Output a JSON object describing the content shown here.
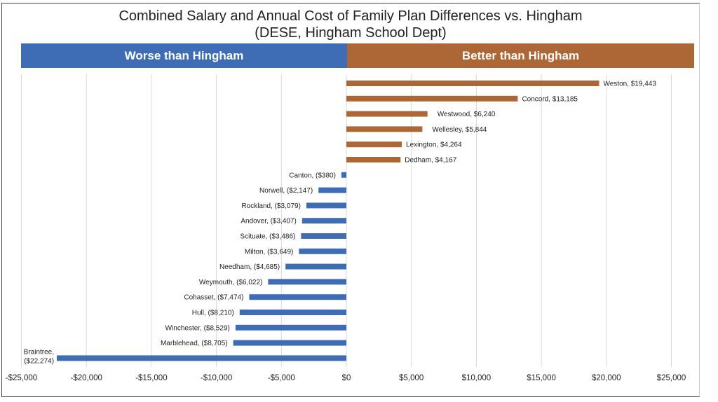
{
  "chart_data": {
    "type": "bar",
    "orientation": "horizontal",
    "title": "Combined Salary and Annual Cost of Family Plan Differences vs. Hingham",
    "subtitle": "(DESE, Hingham School Dept)",
    "regions": {
      "negative": {
        "label": "Worse than Hingham",
        "color": "#3e6db5"
      },
      "positive": {
        "label": "Better than Hingham",
        "color": "#ad6636"
      }
    },
    "xlabel": "",
    "ylabel": "",
    "xlim": [
      -25000,
      27000
    ],
    "xticks": [
      -25000,
      -20000,
      -15000,
      -10000,
      -5000,
      0,
      5000,
      10000,
      15000,
      20000,
      25000
    ],
    "xtick_labels": [
      "-$25,000",
      "-$20,000",
      "-$15,000",
      "-$10,000",
      "-$5,000",
      "$0",
      "$5,000",
      "$10,000",
      "$15,000",
      "$20,000",
      "$25,000"
    ],
    "grid": "vertical",
    "legend": "none",
    "categories": [
      "Weston",
      "Concord",
      "Westwood",
      "Wellesley",
      "Lexington",
      "Dedham",
      "Canton",
      "Norwell",
      "Rockland",
      "Andover",
      "Scituate",
      "Milton",
      "Needham",
      "Weymouth",
      "Cohasset",
      "Hull",
      "Winchester",
      "Marblehead",
      "Braintree"
    ],
    "values": [
      19443,
      13185,
      6240,
      5844,
      4264,
      4167,
      -380,
      -2147,
      -3079,
      -3407,
      -3486,
      -3649,
      -4685,
      -6022,
      -7474,
      -8210,
      -8529,
      -8705,
      -22274
    ],
    "data_labels": [
      "Weston, $19,443",
      "Concord, $13,185",
      "Westwood, $6,240",
      "Wellesley, $5,844",
      "Lexington, $4,264",
      "Dedham, $4,167",
      "Canton, ($380)",
      "Norwell, ($2,147)",
      "Rockland, ($3,079)",
      "Andover, ($3,407)",
      "Scituate, ($3,486)",
      "Milton, ($3,649)",
      "Needham, ($4,685)",
      "Weymouth, ($6,022)",
      "Cohasset, ($7,474)",
      "Hull, ($8,210)",
      "Winchester, ($8,529)",
      "Marblehead, ($8,705)",
      "Braintree, ($22,274)"
    ],
    "colors": {
      "positive": "#ad6636",
      "negative": "#3e6db5",
      "grid": "#d9d9d9"
    }
  }
}
